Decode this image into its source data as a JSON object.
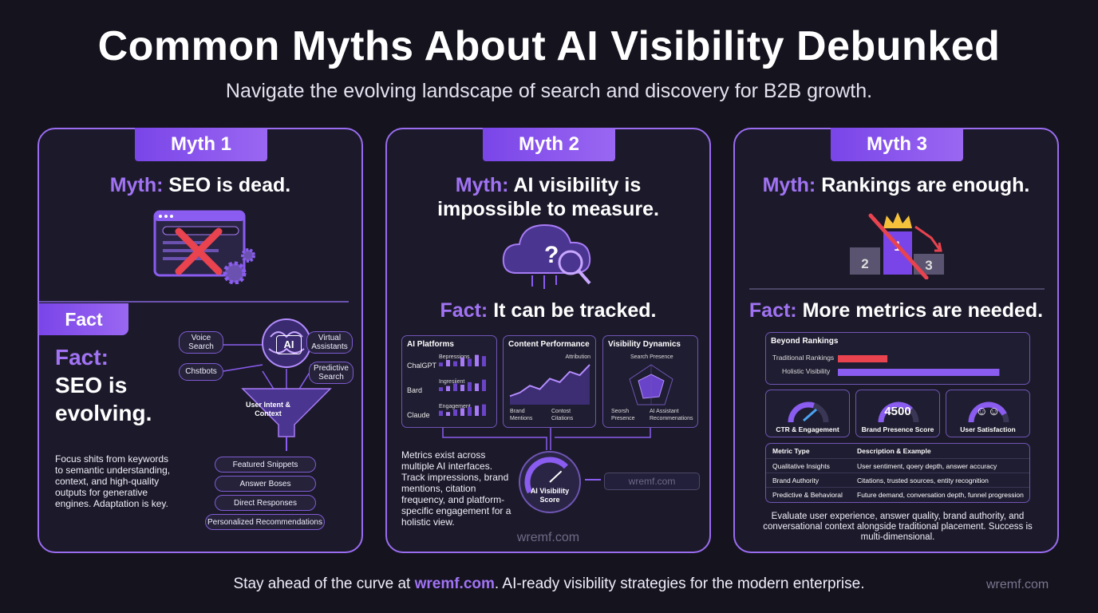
{
  "header": {
    "title": "Common Myths About AI Visibility Debunked",
    "subtitle": "Navigate the evolving landscape of search and discovery for B2B growth."
  },
  "myth1": {
    "tab": "Myth 1",
    "myth_prefix": "Myth:",
    "myth_text": "SEO is dead.",
    "fact_tab": "Fact",
    "fact_prefix": "Fact:",
    "fact_text1": "SEO is",
    "fact_text2": "evolving.",
    "body": "Focus shits from keywords to semantic understanding, context, and high-quality outputs for generative engines. Adaptation is key.",
    "nodes": {
      "voice": "Voice Search",
      "virtual": "Virtual Assistants",
      "chatbots": "Chstbots",
      "predictive": "Predictive Search",
      "ai": "AI",
      "funnel": "User Intent & Context"
    },
    "outputs": [
      "Featured Snippets",
      "Answer Boses",
      "Direct Responses",
      "Personalized Recommendations"
    ]
  },
  "myth2": {
    "tab": "Myth 2",
    "myth_prefix": "Myth:",
    "myth_line1": "AI visibility is",
    "myth_line2": "impossible to measure.",
    "fact_prefix": "Fact:",
    "fact_text": "It can be tracked.",
    "platforms": {
      "title": "AI Platforms",
      "rows": [
        {
          "name": "ChalGPT",
          "metric": "Bepressions",
          "bars": [
            3,
            5,
            4,
            7,
            6,
            9,
            8
          ]
        },
        {
          "name": "Bard",
          "metric": "Ingresiient",
          "bars": [
            3,
            4,
            6,
            5,
            7,
            6,
            9
          ]
        },
        {
          "name": "Claude",
          "metric": "Engagement",
          "bars": [
            4,
            3,
            5,
            6,
            7,
            8,
            9
          ]
        }
      ]
    },
    "content": {
      "title": "Content Performance",
      "label": "Attribution",
      "line": [
        2,
        3,
        5,
        4,
        7,
        6,
        9,
        8,
        11
      ],
      "legend1": "Brand Mentions",
      "legend2": "Contost Citations"
    },
    "dynamics": {
      "title": "Visibility Dynamics",
      "label": "Search Presence",
      "legend1": "Seorsh Presence",
      "legend2": "AI Assistant Recommenations"
    },
    "body": "Metrics exist across multiple AI interfaces. Track impressions, brand mentions, citation frequency, and platform-specific engagement for a holistic view.",
    "score_label1": "AI Visibility",
    "score_label2": "Score",
    "score_fraction": 0.7,
    "url_box": "wremf.com",
    "watermark": "wremf.com"
  },
  "myth3": {
    "tab": "Myth 3",
    "myth_prefix": "Myth:",
    "myth_text": "Rankings are enough.",
    "podium": [
      "2",
      "1",
      "3"
    ],
    "fact_prefix": "Fact:",
    "fact_text": "More metrics are needed.",
    "beyond": {
      "title": "Beyond Rankings",
      "bars": [
        {
          "label": "Traditional Rankings",
          "value": 0.27,
          "color": "#e8434f"
        },
        {
          "label": "Holistic Visibility",
          "value": 0.88,
          "color": "#8a5cf0"
        }
      ]
    },
    "gauges": [
      {
        "label": "CTR & Engagement",
        "value": "",
        "fraction": 0.6
      },
      {
        "label": "Brand Presence Score",
        "value": "4500",
        "fraction": 0.75
      },
      {
        "label": "User Satisfaction",
        "value": "☺☺",
        "fraction": 0.85
      }
    ],
    "table": {
      "headers": [
        "Metric Type",
        "Description & Example"
      ],
      "rows": [
        [
          "Qualitative Insights",
          "User sentiment, qoery depth, answer accuracy"
        ],
        [
          "Brand Authority",
          "Citations, trusted sources, entity recognition"
        ],
        [
          "Predictive & Behavioral",
          "Future demand, conversation depth, funnel progression"
        ]
      ]
    },
    "body": "Evaluate user experience, answer quality, brand authority, and conversational context alongside traditional placement. Success is multi-dimensional."
  },
  "footer": {
    "pre": "Stay ahead of the curve at ",
    "link": "wremf.com",
    "post": ". AI-ready visibility strategies for the modern enterprise.",
    "watermark": "wremf.com"
  }
}
